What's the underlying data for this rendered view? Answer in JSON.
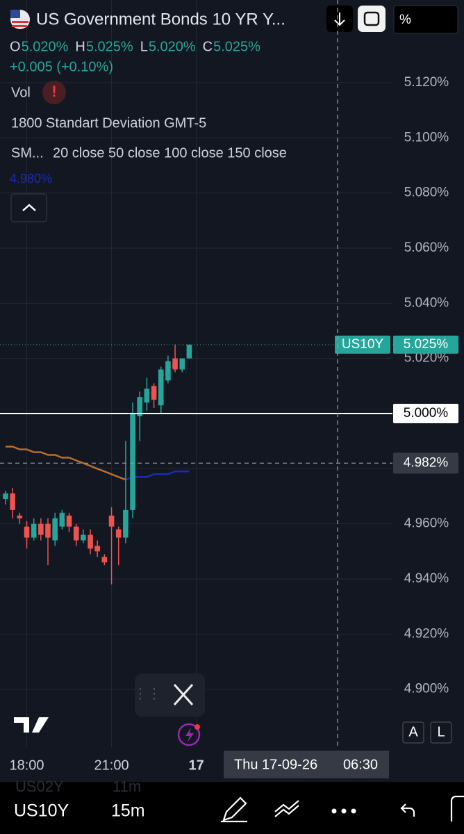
{
  "header": {
    "title": "US Government Bonds 10 YR Y...",
    "ohlc": [
      {
        "key": "O",
        "value": "5.020%"
      },
      {
        "key": "H",
        "value": "5.025%"
      },
      {
        "key": "L",
        "value": "5.020%"
      },
      {
        "key": "C",
        "value": "5.025%"
      }
    ],
    "change": "+0.005 (+0.10%)",
    "vol": "Vol",
    "indicator": "1800 Standart Deviation GMT-5",
    "sma_label": "SM...",
    "sma_params": "20 close 50 close 100 close 150 close",
    "sma_value": "4.980%"
  },
  "toolbar": {
    "unit": "%"
  },
  "chart_data": {
    "type": "candlestick",
    "up_color": "#26a69a",
    "down_color": "#ef5350",
    "grid": true,
    "categories": [
      null,
      null,
      null,
      "18:00",
      null,
      null,
      null,
      null,
      null,
      null,
      null,
      null,
      null,
      null,
      null,
      "21:00",
      null,
      null,
      null,
      null,
      null,
      null,
      null,
      null,
      null,
      null,
      null,
      "17"
    ],
    "open": [
      4.969,
      4.971,
      4.963,
      4.959,
      4.955,
      4.96,
      4.96,
      4.954,
      4.959,
      4.963,
      4.959,
      4.954,
      4.956,
      4.952,
      4.948,
      4.963,
      4.958,
      4.955,
      4.965,
      4.999,
      5.004,
      5.01,
      5.003,
      5.012,
      5.02,
      5.016,
      5.02,
      null
    ],
    "high": [
      4.972,
      4.973,
      4.964,
      4.961,
      4.962,
      4.962,
      4.962,
      4.964,
      4.965,
      4.964,
      4.96,
      4.958,
      4.958,
      4.954,
      4.949,
      4.966,
      4.959,
      4.99,
      5.004,
      5.008,
      5.013,
      5.011,
      5.017,
      5.021,
      5.025,
      5.02,
      5.025,
      null
    ],
    "low": [
      4.967,
      4.962,
      4.96,
      4.951,
      4.954,
      4.954,
      4.945,
      4.952,
      4.958,
      4.957,
      4.952,
      4.953,
      4.949,
      4.948,
      4.945,
      4.938,
      4.945,
      4.953,
      4.962,
      4.99,
      5.001,
      5.002,
      5.0,
      5.011,
      5.015,
      5.015,
      5.02,
      null
    ],
    "close": [
      4.971,
      4.965,
      4.962,
      4.955,
      4.96,
      4.956,
      4.955,
      4.962,
      4.964,
      4.959,
      4.954,
      4.956,
      4.951,
      4.95,
      4.946,
      4.959,
      4.955,
      4.965,
      5.0,
      5.006,
      5.009,
      5.005,
      5.016,
      5.019,
      5.016,
      5.02,
      5.025,
      null
    ],
    "series": [
      {
        "color": "#b8702e",
        "values": [
          4.988,
          4.988,
          4.987,
          4.987,
          4.986,
          4.986,
          4.985,
          4.985,
          4.984,
          4.984,
          4.983,
          4.982,
          4.981,
          4.98,
          4.979,
          4.978,
          4.977,
          4.976,
          null,
          null,
          null,
          null,
          null,
          null,
          null,
          null,
          null,
          null
        ]
      },
      {
        "color": "#1e2bb0",
        "values": [
          null,
          null,
          null,
          null,
          null,
          null,
          null,
          null,
          null,
          null,
          null,
          null,
          null,
          null,
          null,
          null,
          null,
          4.976,
          4.977,
          4.977,
          4.977,
          4.978,
          4.978,
          4.978,
          4.979,
          4.979,
          4.979,
          null
        ]
      }
    ],
    "ylim": [
      4.879,
      5.15
    ],
    "yticks": [
      {
        "value": 4.9,
        "label": "4.900%"
      },
      {
        "value": 4.92,
        "label": "4.920%"
      },
      {
        "value": 4.94,
        "label": "4.940%"
      },
      {
        "value": 4.96,
        "label": "4.960%"
      },
      {
        "value": 4.98,
        "label": "4.980%"
      },
      {
        "value": 5.0,
        "label": "5.000%"
      },
      {
        "value": 5.02,
        "label": "5.020%"
      },
      {
        "value": 5.04,
        "label": "5.040%"
      },
      {
        "value": 5.06,
        "label": "5.060%"
      },
      {
        "value": 5.08,
        "label": "5.080%"
      },
      {
        "value": 5.1,
        "label": "5.100%"
      },
      {
        "value": 5.12,
        "label": "5.120%"
      }
    ],
    "last_price": {
      "symbol": "US10Y",
      "value": 5.025,
      "label": "5.025%"
    },
    "price_line": {
      "value": 5.0,
      "label": "5.000%"
    },
    "crosshair": {
      "value": 4.982,
      "label": "4.982%",
      "date": "Thu 17-09-26",
      "time": "06:30"
    }
  },
  "scale_buttons": [
    "A",
    "L"
  ],
  "bottom_bar": {
    "prev_symbol": "US02Y",
    "prev_interval": "11m",
    "symbol": "US10Y",
    "interval": "15m"
  }
}
